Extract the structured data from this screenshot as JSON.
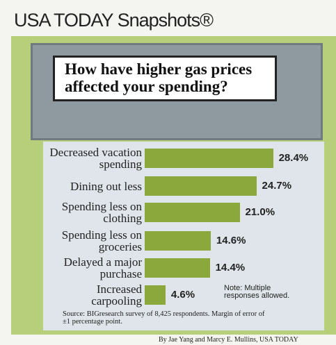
{
  "header": "USA TODAY Snapshots®",
  "chart_data": {
    "type": "bar",
    "orientation": "horizontal",
    "title": "How have higher gas prices affected your spending?",
    "categories": [
      "Decreased vacation spending",
      "Dining out less",
      "Spending less on clothing",
      "Spending less on groceries",
      "Delayed a major purchase",
      "Increased carpooling"
    ],
    "values": [
      28.4,
      24.7,
      21.0,
      14.6,
      14.4,
      4.6
    ],
    "value_labels": [
      "28.4%",
      "24.7%",
      "21.0%",
      "14.6%",
      "14.4%",
      "4.6%"
    ],
    "color": "#8ba83c",
    "note": "Note: Multiple responses allowed.",
    "source": "Source: BIGresearch survey of 8,425 respondents. Margin of error of ±1 percentage point."
  },
  "credit": "By Jae Yang and Marcy E. Mullins, USA TODAY"
}
